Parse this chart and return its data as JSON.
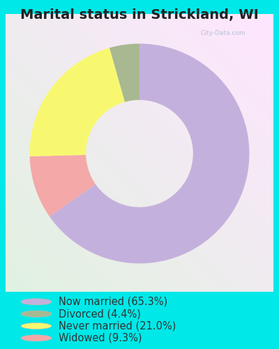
{
  "title": "Marital status in Strickland, WI",
  "segments": [
    {
      "label": "Now married (65.3%)",
      "value": 65.3,
      "color": "#c4b0dc"
    },
    {
      "label": "Widowed (9.3%)",
      "value": 9.3,
      "color": "#f4a8a8"
    },
    {
      "label": "Never married (21.0%)",
      "value": 21.0,
      "color": "#f8f870"
    },
    {
      "label": "Divorced (4.4%)",
      "value": 4.4,
      "color": "#a8b890"
    }
  ],
  "background_outer": "#00e8e8",
  "title_fontsize": 14,
  "legend_fontsize": 10.5,
  "donut_width": 0.42,
  "start_angle": 90,
  "watermark": "City-Data.com"
}
